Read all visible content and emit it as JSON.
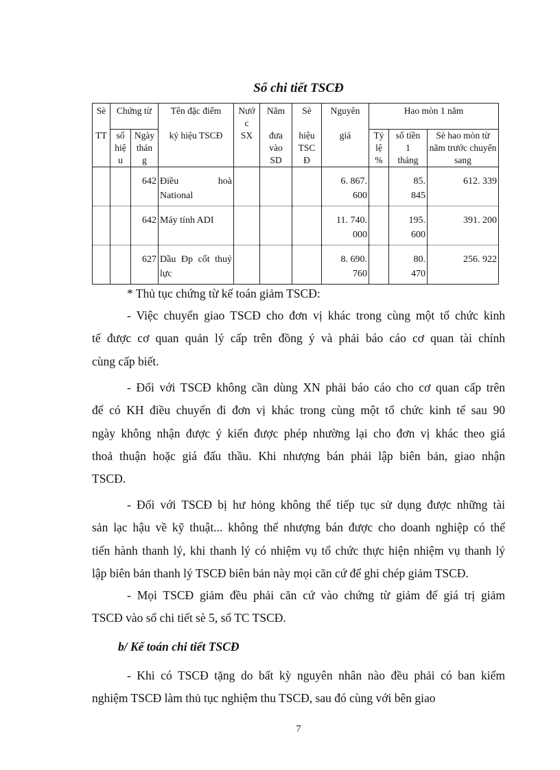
{
  "table_title": "Sổ chi tiết TSCĐ",
  "table": {
    "headers": {
      "stt": "Sè\n\nTT",
      "chung_tu": "Chứng từ",
      "so_hieu": "số\nhiệ\nu",
      "ngay_thang": "Ngày\nthán\ng",
      "ten": "Tên đặc điểm\n\nký hiệu TSCĐ",
      "nuoc_sx": "Nướ\nc\nSX",
      "nam": "Năm\n\nđưa\nvào\nSD",
      "so_hieu_tscd": "Sè\n\nhiệu\nTSC\nĐ",
      "nguyen_gia": "Nguyên\n\ngiá",
      "hao_mon": "Hao mòn 1 năm",
      "ty_le": "Tỷ\nlệ\n%",
      "so_tien": "số tiền\n1\ntháng",
      "luy_ke": "Sè hao mòn từ\nnăm trước chuyển\nsang"
    },
    "rows": [
      {
        "ngay": "642",
        "ten": [
          "Điều hoà",
          "National"
        ],
        "nguyen_gia": "6. 867.\n600",
        "so_tien": "85.\n845",
        "luy_ke": "612. 339"
      },
      {
        "ngay": "642",
        "ten": [
          "Máy tính ADI",
          ""
        ],
        "nguyen_gia": "11. 740.\n000",
        "so_tien": "195.\n600",
        "luy_ke": "391. 200"
      },
      {
        "ngay": "627",
        "ten": [
          "Dầu Đp cốt thuỷ",
          "lực"
        ],
        "nguyen_gia": "8. 690.\n760",
        "so_tien": "80.\n470",
        "luy_ke": "256. 922"
      }
    ]
  },
  "section_intro": "* Thủ tục chứng từ kế toán giảm TSCĐ:",
  "paragraphs": [
    [
      "- Việc chuyển giao TSCĐ cho đơn vị khác trong cùng một tổ chức kinh",
      "tế được cơ quan quản lý cấp trên đồng ý và phải báo cáo cơ quan tài chính",
      "cùng cấp biết."
    ],
    [
      "- Đối với TSCĐ không cần dùng XN phải báo cáo cho cơ quan cấp trên",
      "để có KH điều chuyển đi đơn vị khác trong cùng một tổ chức kinh tế sau 90",
      "ngày không nhận được ý kiến được phép nhường lại cho đơn vị khác theo giá",
      "thoả thuận hoặc giá đấu thầu. Khi nhượng bán phải lập biên bản, giao nhận",
      "TSCĐ."
    ],
    [
      "- Đối với TSCĐ bị hư hỏng không thể tiếp tục sử dụng được những tài",
      "sản lạc hậu về kỹ thuật... không thể nhượng bán được cho doanh nghiệp có thể",
      "tiến hành thanh lý, khi thanh lý có nhiệm vụ tổ chức thực hiện nhiệm vụ thanh lý",
      "lập biên bản thanh lý TSCĐ biên bản này mọi căn cứ để ghi chép giảm TSCĐ."
    ],
    [
      "- Mọi TSCĐ giảm đều phải căn cứ vào chứng từ giảm để giá trị giảm",
      "TSCĐ vào sổ chi tiết sè 5, sổ TC TSCĐ."
    ]
  ],
  "heading_b": "b/ Kế toán chi tiết TSCĐ",
  "paragraph_b": [
    "- Khi có TSCĐ tặng do bất kỳ nguyên nhân nào đều phải có ban kiểm",
    "nghiệm TSCĐ làm thủ tục nghiệm thu TSCĐ, sau đó cùng với bên giao"
  ],
  "page_number": "7"
}
